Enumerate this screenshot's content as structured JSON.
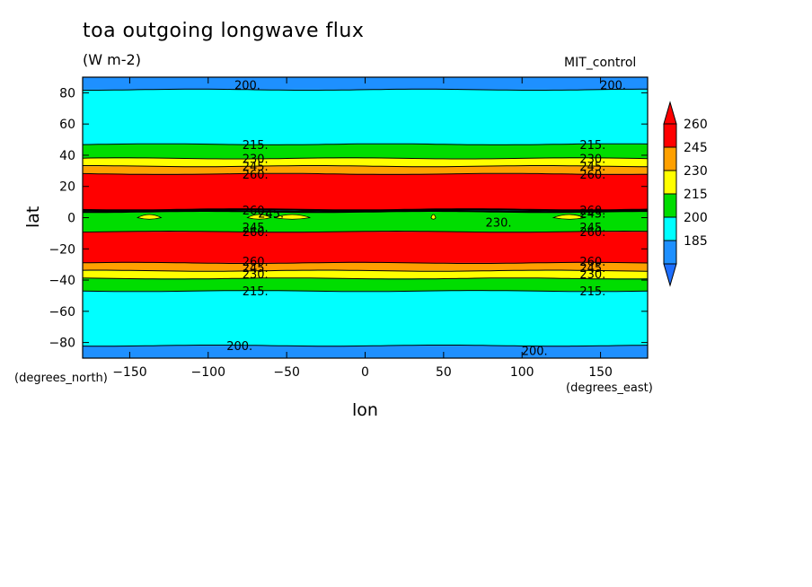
{
  "chart_data": {
    "type": "heatmap",
    "title": "toa outgoing longwave flux",
    "units": "(W m-2)",
    "run_label": "MIT_control",
    "xlabel": "lon",
    "ylabel": "lat",
    "x_units": "(degrees_east)",
    "y_units": "(degrees_north)",
    "xlim": [
      -180,
      180
    ],
    "ylim": [
      -90,
      90
    ],
    "x_ticks": [
      -150,
      -100,
      -50,
      0,
      50,
      100,
      150
    ],
    "y_ticks": [
      -80,
      -60,
      -40,
      -20,
      0,
      20,
      40,
      60,
      80
    ],
    "colorbar": {
      "labels": [
        "185",
        "200",
        "215",
        "230",
        "245",
        "260"
      ],
      "colors": [
        "#1e90ff",
        "#00ffff",
        "#00dd00",
        "#ffff00",
        "#ffa000",
        "#ff0000"
      ],
      "under_color": "#1e6fff",
      "over_color": "#ff0000"
    },
    "bands": [
      {
        "lat_min": 82,
        "lat_max": 90,
        "value": 190
      },
      {
        "lat_min": 47,
        "lat_max": 82,
        "value": 205
      },
      {
        "lat_min": 38,
        "lat_max": 47,
        "value": 220
      },
      {
        "lat_min": 33,
        "lat_max": 38,
        "value": 235
      },
      {
        "lat_min": 28,
        "lat_max": 33,
        "value": 250
      },
      {
        "lat_min": 5,
        "lat_max": 28,
        "value": 265
      },
      {
        "lat_min": -9,
        "lat_max": 4,
        "value": 220
      },
      {
        "lat_min": -29,
        "lat_max": -9,
        "value": 265
      },
      {
        "lat_min": -34,
        "lat_max": -29,
        "value": 250
      },
      {
        "lat_min": -39,
        "lat_max": -34,
        "value": 235
      },
      {
        "lat_min": -47,
        "lat_max": -39,
        "value": 220
      },
      {
        "lat_min": -82,
        "lat_max": -47,
        "value": 205
      },
      {
        "lat_min": -90,
        "lat_max": -82,
        "value": 190
      }
    ],
    "contour_labels": [
      {
        "text": "200.",
        "lon": -75,
        "lat": 85
      },
      {
        "text": "200.",
        "lon": 158,
        "lat": 85
      },
      {
        "text": "215.",
        "lon": -70,
        "lat": 47
      },
      {
        "text": "215.",
        "lon": 145,
        "lat": 47
      },
      {
        "text": "230.",
        "lon": -70,
        "lat": 38
      },
      {
        "text": "230.",
        "lon": 145,
        "lat": 38
      },
      {
        "text": "245.",
        "lon": -70,
        "lat": 33
      },
      {
        "text": "245.",
        "lon": 145,
        "lat": 33
      },
      {
        "text": "260.",
        "lon": -70,
        "lat": 28
      },
      {
        "text": "260.",
        "lon": 145,
        "lat": 28
      },
      {
        "text": "260.",
        "lon": -70,
        "lat": 5
      },
      {
        "text": "245.",
        "lon": -60,
        "lat": 3
      },
      {
        "text": "260.",
        "lon": 145,
        "lat": 5
      },
      {
        "text": "245.",
        "lon": 145,
        "lat": 3
      },
      {
        "text": "230.",
        "lon": 85,
        "lat": -3
      },
      {
        "text": "245.",
        "lon": -70,
        "lat": -6
      },
      {
        "text": "260.",
        "lon": -70,
        "lat": -9
      },
      {
        "text": "245.",
        "lon": 145,
        "lat": -6
      },
      {
        "text": "260.",
        "lon": 145,
        "lat": -9
      },
      {
        "text": "260.",
        "lon": -70,
        "lat": -28
      },
      {
        "text": "260.",
        "lon": 145,
        "lat": -28
      },
      {
        "text": "245.",
        "lon": -70,
        "lat": -32
      },
      {
        "text": "245.",
        "lon": 145,
        "lat": -32
      },
      {
        "text": "230.",
        "lon": -70,
        "lat": -36
      },
      {
        "text": "230.",
        "lon": 145,
        "lat": -36
      },
      {
        "text": "215.",
        "lon": -70,
        "lat": -47
      },
      {
        "text": "215.",
        "lon": 145,
        "lat": -47
      },
      {
        "text": "200.",
        "lon": -80,
        "lat": -82
      },
      {
        "text": "200.",
        "lon": 108,
        "lat": -85
      }
    ]
  }
}
